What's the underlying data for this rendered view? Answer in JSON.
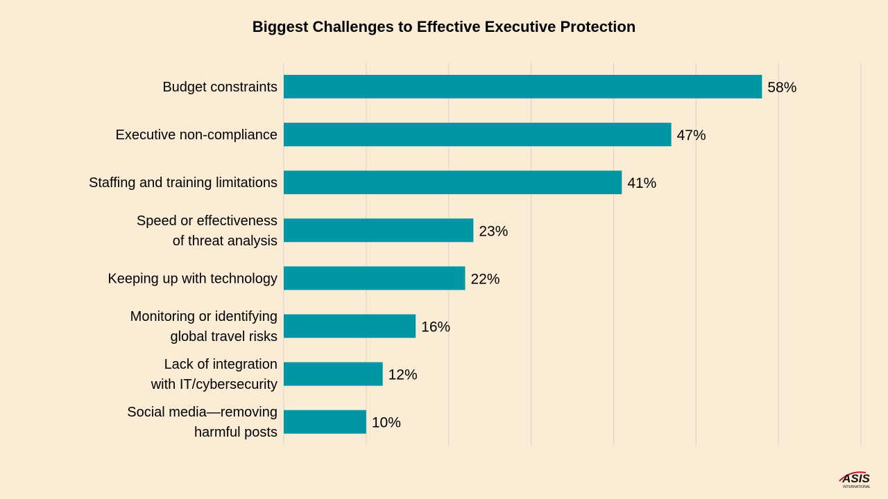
{
  "chart_data": {
    "type": "bar",
    "orientation": "horizontal",
    "title": "Biggest Challenges to Effective Executive Protection",
    "categories": [
      [
        "Budget constraints"
      ],
      [
        "Executive non-compliance"
      ],
      [
        "Staffing and training limitations"
      ],
      [
        "Speed or effectiveness",
        "of threat analysis"
      ],
      [
        "Keeping up with technology"
      ],
      [
        "Monitoring or identifying",
        "global travel risks"
      ],
      [
        "Lack of integration",
        "with IT/cybersecurity"
      ],
      [
        "Social media—removing",
        "harmful posts"
      ]
    ],
    "values": [
      58,
      47,
      41,
      23,
      22,
      16,
      12,
      10
    ],
    "data_labels": [
      "58%",
      "47%",
      "41%",
      "23%",
      "22%",
      "16%",
      "12%",
      "10%"
    ],
    "xlim": [
      0,
      70
    ],
    "grid_step": 10,
    "grid": true,
    "bar_color": "#0096a4",
    "gridline_color": "#d9d2c4"
  },
  "logo": {
    "text": "ASIS",
    "subtext": "INTERNATIONAL",
    "accent_color": "#c8102e"
  }
}
